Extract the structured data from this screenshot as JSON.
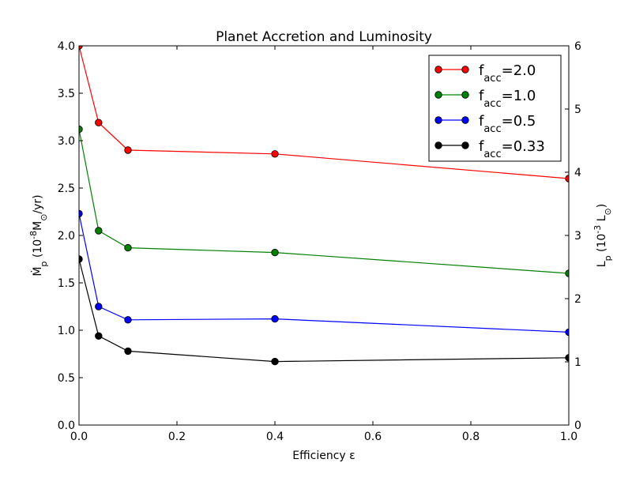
{
  "chart_data": {
    "type": "line",
    "title": "Planet Accretion and Luminosity",
    "xlabel": "Efficiency ε",
    "ylabel": {
      "main": "Ṁ",
      "sub": "p",
      "rest1": "  (10",
      "sup": "-8",
      "rest2": "M",
      "sub2": "⊙",
      "rest3": "/yr)"
    },
    "y2label": {
      "main": "L",
      "sub": "p",
      "rest1": "  (10",
      "sup": "-3",
      "rest2": " L",
      "sub2": "⊙",
      "rest3": ")"
    },
    "xlim": [
      0.0,
      1.0
    ],
    "ylim": [
      0.0,
      4.0
    ],
    "y2lim": [
      0,
      6
    ],
    "xticks": [
      "0.0",
      "0.2",
      "0.4",
      "0.6",
      "0.8",
      "1.0"
    ],
    "xtick_values": [
      0.0,
      0.2,
      0.4,
      0.6,
      0.8,
      1.0
    ],
    "yticks": [
      "0.0",
      "0.5",
      "1.0",
      "1.5",
      "2.0",
      "2.5",
      "3.0",
      "3.5",
      "4.0"
    ],
    "ytick_values": [
      0.0,
      0.5,
      1.0,
      1.5,
      2.0,
      2.5,
      3.0,
      3.5,
      4.0
    ],
    "y2ticks": [
      "0",
      "1",
      "2",
      "3",
      "4",
      "5",
      "6"
    ],
    "y2tick_values": [
      0,
      1,
      2,
      3,
      4,
      5,
      6
    ],
    "x": [
      0.0,
      0.04,
      0.1,
      0.4,
      1.0
    ],
    "series": [
      {
        "name": "f_acc=2.0",
        "label_main": "f",
        "label_sub": "acc",
        "label_rest": "=2.0",
        "color": "#ff0000",
        "values": [
          4.0,
          3.19,
          2.9,
          2.86,
          2.6
        ]
      },
      {
        "name": "f_acc=1.0",
        "label_main": "f",
        "label_sub": "acc",
        "label_rest": "=1.0",
        "color": "#008000",
        "values": [
          3.12,
          2.05,
          1.87,
          1.82,
          1.6
        ]
      },
      {
        "name": "f_acc=0.5",
        "label_main": "f",
        "label_sub": "acc",
        "label_rest": "=0.5",
        "color": "#0000ff",
        "values": [
          2.23,
          1.25,
          1.11,
          1.12,
          0.98
        ]
      },
      {
        "name": "f_acc=0.33",
        "label_main": "f",
        "label_sub": "acc",
        "label_rest": "=0.33",
        "color": "#000000",
        "values": [
          1.75,
          0.94,
          0.78,
          0.67,
          0.71
        ]
      }
    ],
    "grid": false,
    "legend_position": "top-right"
  }
}
